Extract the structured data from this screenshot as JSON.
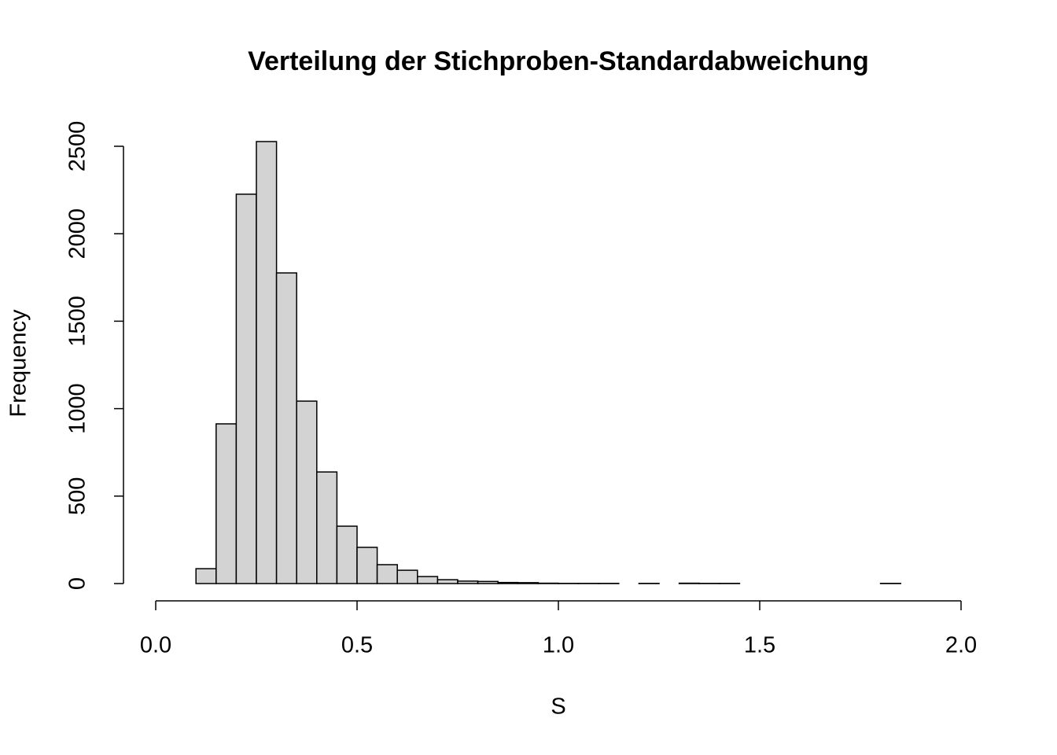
{
  "chart_data": {
    "type": "histogram",
    "title": "Verteilung der Stichproben-Standardabweichung",
    "x_label": "S",
    "y_label": "Frequency",
    "bins": [
      0.1,
      0.15,
      0.2,
      0.25,
      0.3,
      0.35,
      0.4,
      0.45,
      0.5,
      0.55,
      0.6,
      0.65,
      0.7,
      0.75,
      0.8,
      0.85,
      0.9,
      0.95,
      1.0,
      1.05,
      1.1,
      1.15,
      1.2,
      1.25,
      1.3,
      1.35,
      1.4,
      1.45,
      1.5,
      1.55,
      1.6,
      1.65,
      1.7,
      1.75,
      1.8,
      1.85
    ],
    "counts": [
      85,
      913,
      2226,
      2527,
      1776,
      1043,
      638,
      328,
      207,
      108,
      76,
      40,
      22,
      14,
      12,
      6,
      5,
      2,
      1,
      1,
      1,
      0,
      1,
      0,
      2,
      1,
      1,
      0,
      0,
      0,
      0,
      0,
      0,
      0,
      1
    ],
    "color": "#d3d3d3",
    "xlim": [
      0,
      2
    ],
    "xticks": [
      {
        "value": 0,
        "label": "0.0"
      },
      0.5,
      {
        "value": 1,
        "label": "1.0"
      },
      1.5,
      {
        "value": 2,
        "label": "2.0"
      }
    ],
    "ylim": [
      0,
      2500
    ],
    "yticks": [
      0,
      500,
      1000,
      1500,
      2000,
      2500
    ]
  }
}
